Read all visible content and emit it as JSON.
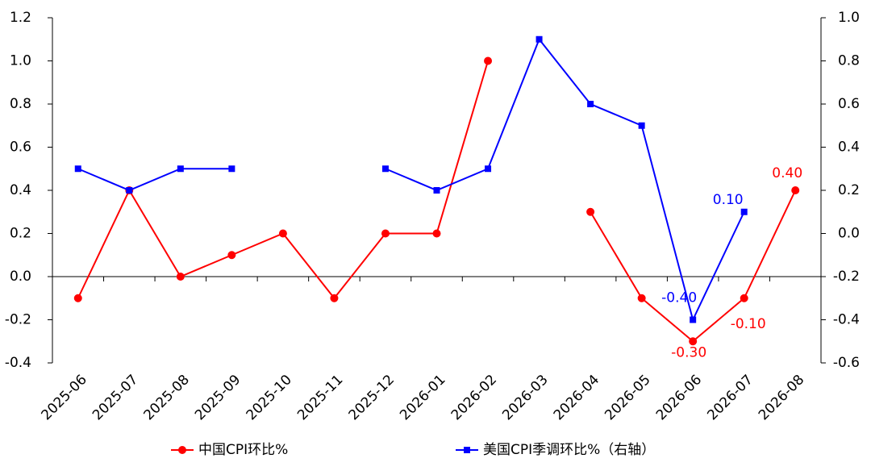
{
  "chart_data": {
    "type": "line",
    "categories": [
      "2025-06",
      "2025-07",
      "2025-08",
      "2025-09",
      "2025-10",
      "2025-11",
      "2025-12",
      "2026-01",
      "2026-02",
      "2026-03",
      "2026-04",
      "2026-05",
      "2026-06",
      "2026-07",
      "2026-08"
    ],
    "series": [
      {
        "name": "中国CPI环比%",
        "color": "#ff0000",
        "marker": "circle",
        "values": [
          -0.1,
          0.4,
          0.0,
          0.1,
          0.2,
          -0.1,
          0.2,
          0.2,
          1.0,
          null,
          0.3,
          -0.1,
          -0.3,
          -0.1,
          0.4
        ],
        "value_labels": [
          null,
          null,
          null,
          null,
          null,
          null,
          null,
          null,
          null,
          null,
          null,
          null,
          "-0.30",
          "-0.10",
          "0.40"
        ]
      },
      {
        "name": "美国CPI季调环比%（右轴）",
        "color": "#0000ff",
        "marker": "square",
        "axis": "y2",
        "values": [
          0.3,
          0.2,
          0.3,
          0.3,
          null,
          null,
          0.3,
          0.2,
          0.3,
          0.9,
          0.6,
          0.5,
          -0.4,
          0.1,
          null
        ],
        "value_labels": [
          null,
          null,
          null,
          null,
          null,
          null,
          null,
          null,
          null,
          null,
          null,
          null,
          "-0.40",
          "0.10",
          null
        ]
      }
    ],
    "ylim": [
      -0.4,
      1.2
    ],
    "yticks": [
      -0.4,
      -0.2,
      {
        "value": 0,
        "label": "0.0"
      },
      0.2,
      0.4,
      0.6,
      0.8,
      {
        "value": 1,
        "label": "1.0"
      },
      1.2
    ],
    "y2lim": [
      -0.6,
      1.0
    ],
    "y2ticks": [
      -0.6,
      -0.4,
      -0.2,
      {
        "value": 0,
        "label": "0.0"
      },
      0.2,
      0.4,
      0.6,
      0.8,
      {
        "value": 1,
        "label": "1.0"
      }
    ],
    "legend": "bottom"
  }
}
